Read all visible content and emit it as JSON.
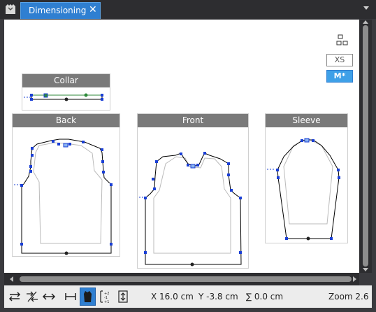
{
  "window": {
    "tab_title": "Dimensioning",
    "close_glyph": "✕"
  },
  "sizes": [
    {
      "label": "XS",
      "active": false
    },
    {
      "label": "M*",
      "active": true
    }
  ],
  "pieces": {
    "collar": "Collar",
    "back": "Back",
    "front": "Front",
    "sleeve": "Sleeve"
  },
  "status": {
    "x": "X 16.0 cm",
    "y": "Y -3.8 cm",
    "sum": "∑ 0.0 cm",
    "zoom": "Zoom 2.6"
  },
  "colors": {
    "accent": "#2f7fd1",
    "active_size": "#3ea0e8",
    "point_blue": "#1a3fd6",
    "point_green": "#2d8a3a"
  }
}
